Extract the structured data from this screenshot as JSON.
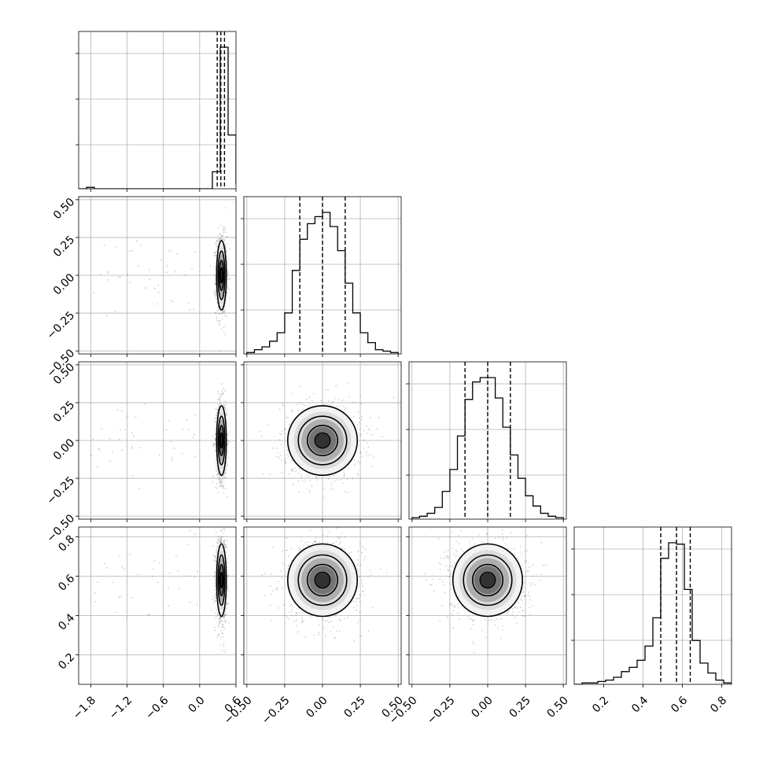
{
  "chart_data": {
    "type": "corner",
    "n_params": 4,
    "param_ranges": [
      [
        -2.0,
        0.6
      ],
      [
        -0.52,
        0.52
      ],
      [
        -0.52,
        0.52
      ],
      [
        0.05,
        0.85
      ]
    ],
    "tick_labels": {
      "p0_bottom": [
        "−1.8",
        "−1.2",
        "−0.6",
        "0.0",
        "0.6"
      ],
      "p1_bottom": [
        "−0.50",
        "−0.25",
        "0.00",
        "0.25",
        "0.50"
      ],
      "p2_bottom": [
        "−0.50",
        "−0.25",
        "0.00",
        "0.25",
        "0.50"
      ],
      "p3_bottom": [
        "0.2",
        "0.4",
        "0.6",
        "0.8"
      ],
      "p1_left": [
        "0.50",
        "0.25",
        "0.00",
        "−0.25",
        "−0.50"
      ],
      "p2_left": [
        "0.50",
        "0.25",
        "0.00",
        "−0.25",
        "−0.50"
      ],
      "p3_left": [
        "0.8",
        "0.6",
        "0.4",
        "0.2"
      ]
    },
    "tick_values": {
      "p0": [
        -1.8,
        -1.2,
        -0.6,
        0.0,
        0.6
      ],
      "p1": [
        -0.5,
        -0.25,
        0.0,
        0.25,
        0.5
      ],
      "p2": [
        -0.5,
        -0.25,
        0.0,
        0.25,
        0.5
      ],
      "p3": [
        0.2,
        0.4,
        0.6,
        0.8
      ]
    },
    "quantiles": [
      [
        0.29,
        0.35,
        0.41
      ],
      [
        -0.15,
        0.0,
        0.15
      ],
      [
        -0.15,
        0.0,
        0.15
      ],
      [
        0.49,
        0.57,
        0.64
      ]
    ],
    "histograms": [
      {
        "edges": [
          -2.0,
          -1.87,
          -1.74,
          -1.61,
          -1.48,
          -1.35,
          -1.22,
          -1.09,
          -0.96,
          -0.83,
          -0.7,
          -0.57,
          -0.44,
          -0.31,
          -0.18,
          -0.05,
          0.08,
          0.21,
          0.34,
          0.47,
          0.6
        ],
        "counts": [
          0,
          1,
          0,
          0,
          0,
          0,
          0,
          0,
          0,
          0,
          0,
          0,
          0,
          0,
          0,
          0,
          0,
          12,
          100,
          38,
          3
        ]
      },
      {
        "edges": [
          -0.5,
          -0.45,
          -0.4,
          -0.35,
          -0.3,
          -0.25,
          -0.2,
          -0.15,
          -0.1,
          -0.05,
          0.0,
          0.05,
          0.1,
          0.15,
          0.2,
          0.25,
          0.3,
          0.35,
          0.4,
          0.45,
          0.5
        ],
        "counts": [
          1,
          3,
          5,
          9,
          15,
          29,
          59,
          81,
          92,
          97,
          100,
          90,
          73,
          50,
          29,
          15,
          8,
          3,
          2,
          1
        ]
      },
      {
        "edges": [
          -0.5,
          -0.45,
          -0.4,
          -0.35,
          -0.3,
          -0.25,
          -0.2,
          -0.15,
          -0.1,
          -0.05,
          0.0,
          0.05,
          0.1,
          0.15,
          0.2,
          0.25,
          0.3,
          0.35,
          0.4,
          0.45,
          0.5
        ],
        "counts": [
          1,
          2,
          4,
          8,
          19,
          34,
          57,
          82,
          94,
          97,
          97,
          83,
          63,
          44,
          28,
          16,
          9,
          4,
          2,
          1
        ]
      },
      {
        "edges": [
          0.05,
          0.09,
          0.13,
          0.17,
          0.21,
          0.25,
          0.29,
          0.33,
          0.37,
          0.41,
          0.45,
          0.49,
          0.53,
          0.57,
          0.61,
          0.65,
          0.69,
          0.73,
          0.77,
          0.81,
          0.85
        ],
        "counts": [
          0,
          1,
          1,
          2,
          3,
          5,
          9,
          12,
          17,
          27,
          47,
          89,
          100,
          99,
          67,
          31,
          15,
          8,
          3,
          1
        ]
      }
    ],
    "joint_centers": {
      "p0": 0.36,
      "p1": 0.0,
      "p2": 0.0,
      "p3": 0.58
    },
    "joint_spreads": {
      "p0": 0.035,
      "p1": 0.1,
      "p2": 0.1,
      "p3": 0.08
    },
    "grid": true,
    "colors": {
      "line": "#000000",
      "grid": "#b0b0b0",
      "points": "#000000"
    }
  }
}
